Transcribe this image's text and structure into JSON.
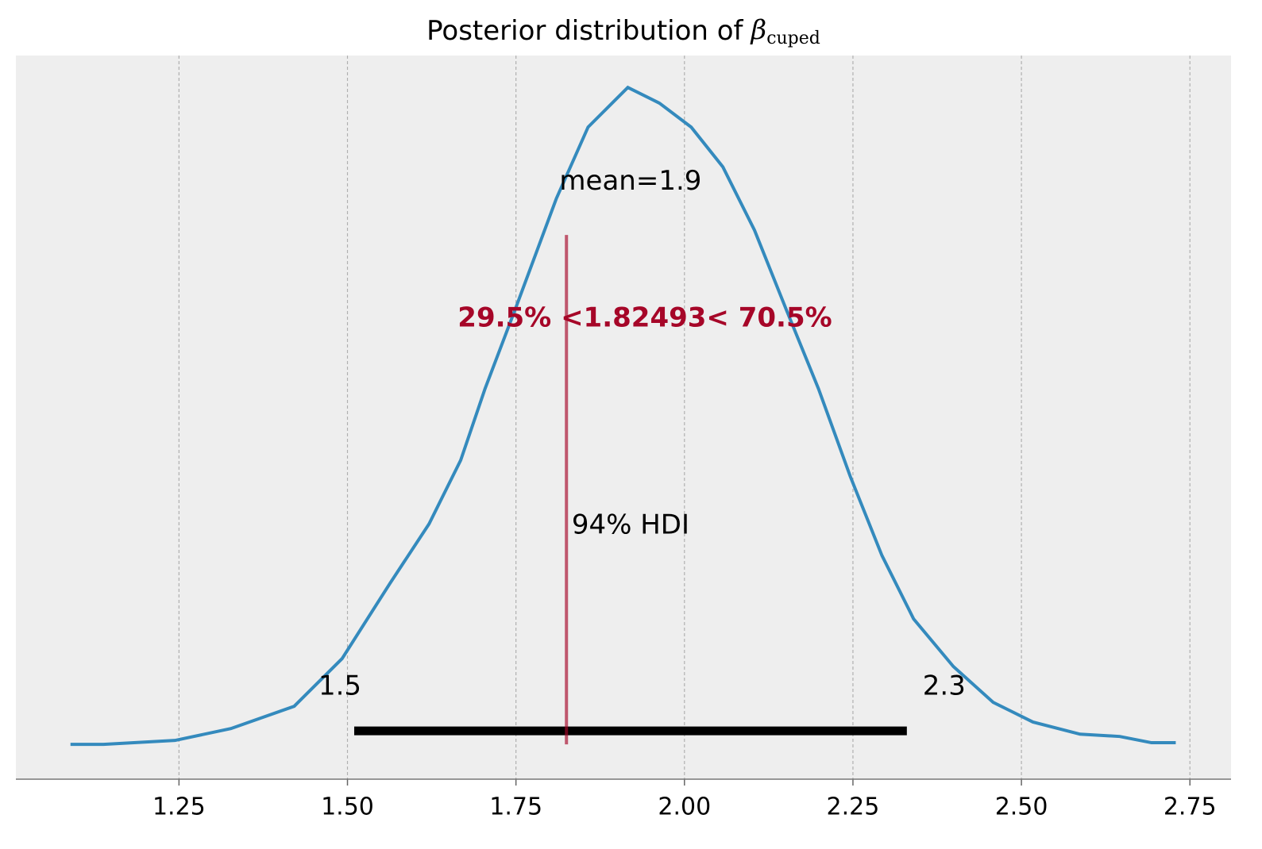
{
  "chart_data": {
    "type": "line",
    "title": "Posterior distribution of",
    "title_symbol": "β",
    "title_subscript": "cuped",
    "x": [
      1.089,
      1.138,
      1.244,
      1.327,
      1.421,
      1.492,
      1.563,
      1.621,
      1.668,
      1.704,
      1.751,
      1.81,
      1.857,
      1.916,
      1.963,
      2.01,
      2.057,
      2.104,
      2.151,
      2.199,
      2.246,
      2.293,
      2.34,
      2.399,
      2.458,
      2.517,
      2.587,
      2.646,
      2.693,
      2.729
    ],
    "values": [
      0.0,
      0.0,
      0.012,
      0.048,
      0.116,
      0.261,
      0.49,
      0.671,
      0.865,
      1.082,
      1.336,
      1.662,
      1.879,
      2.0,
      1.952,
      1.879,
      1.758,
      1.565,
      1.324,
      1.082,
      0.816,
      0.575,
      0.382,
      0.237,
      0.128,
      0.068,
      0.031,
      0.024,
      0.005,
      0.005
    ],
    "color": "#348abd",
    "xlim": [
      1.008,
      2.811
    ],
    "ylim": [
      -0.106,
      2.097
    ],
    "xticks": [
      1.25,
      {
        "value": 1.5,
        "label": "1.50"
      },
      1.75,
      {
        "value": 2.0,
        "label": "2.00"
      },
      2.25,
      {
        "value": 2.5,
        "label": "2.50"
      },
      2.75
    ],
    "grid": true,
    "mean": {
      "value": 1.92,
      "label": "mean=1.9"
    },
    "hdi": {
      "label": "94% HDI",
      "low": 1.51,
      "high": 2.33,
      "low_label": "1.5",
      "high_label": "2.3",
      "color": "#000000"
    },
    "reference": {
      "value": 1.82493,
      "label": "29.5% <1.82493< 70.5%",
      "color": "#a60628"
    }
  }
}
